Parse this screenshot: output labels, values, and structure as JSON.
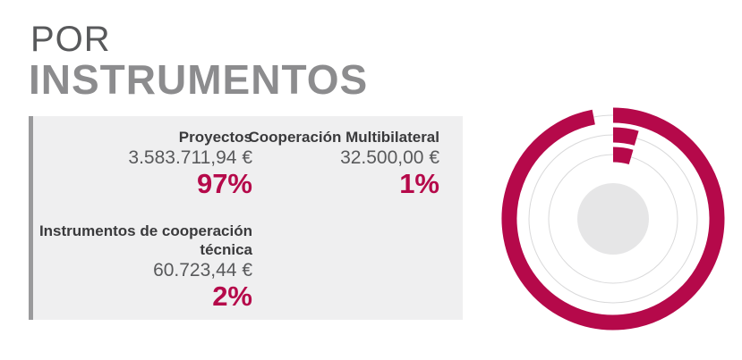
{
  "header": {
    "pre": "POR",
    "title": "INSTRUMENTOS"
  },
  "items": [
    {
      "name": "Proyectos",
      "amount": "3.583.711,94 €",
      "pct": "97%"
    },
    {
      "name": "Cooperación Multibilateral",
      "amount": "32.500,00 €",
      "pct": "1%"
    },
    {
      "name": "Instrumentos de cooperación técnica",
      "amount": "60.723,44 €",
      "pct": "2%"
    }
  ],
  "chart_data": {
    "type": "radial-bar",
    "categories": [
      "Proyectos",
      "Instrumentos de cooperación técnica",
      "Cooperación Multibilateral"
    ],
    "values": [
      97,
      2,
      1
    ],
    "unit": "%",
    "max": 100,
    "colors": {
      "bar": "#b5094a",
      "track": "#d9d9da",
      "center": "#e6e6e7"
    }
  }
}
